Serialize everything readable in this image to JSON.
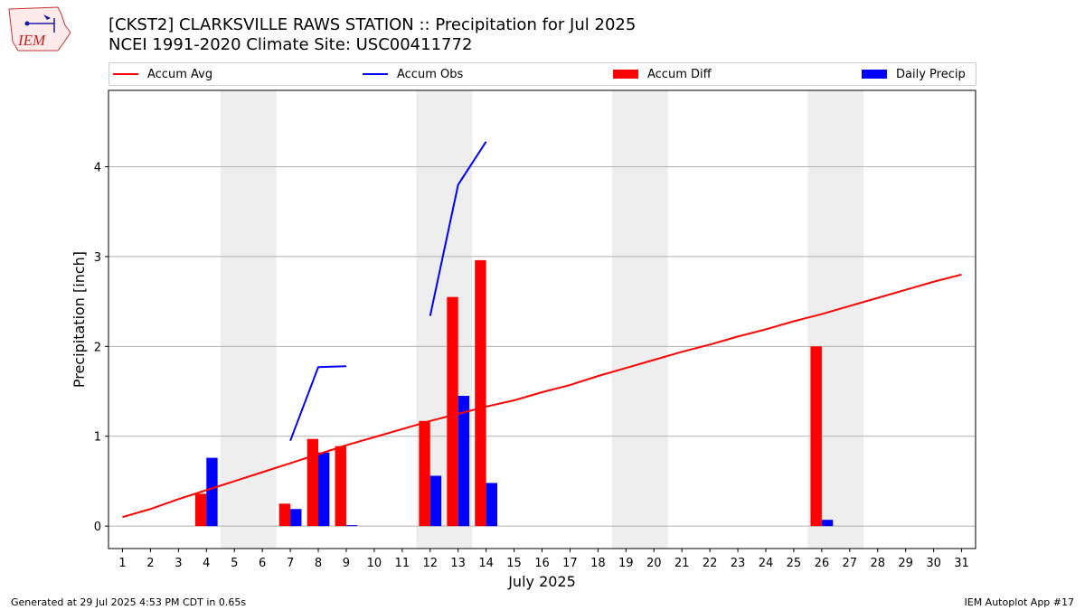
{
  "header": {
    "title_line1": "[CKST2] CLARKSVILLE RAWS STATION :: Precipitation for Jul 2025",
    "title_line2": "NCEI 1991-2020 Climate Site: USC00411772",
    "logo_text": "IEM"
  },
  "legend": {
    "accum_avg": "Accum Avg",
    "accum_obs": "Accum Obs",
    "accum_diff": "Accum Diff",
    "daily_precip": "Daily Precip"
  },
  "footer": {
    "generated": "Generated at 29 Jul 2025 4:53 PM CDT in 0.65s",
    "app": "IEM Autoplot App #17"
  },
  "colors": {
    "avg": "#ff0000",
    "obs": "#0000ff",
    "diff": "#ff0000",
    "daily": "#0000ff",
    "weekend": "#eeeeee",
    "grid": "#b0b0b0"
  },
  "chart_data": {
    "type": "bar",
    "xlabel": "July 2025",
    "ylabel": "Precipitation [inch]",
    "xlim": [
      0.5,
      31.5
    ],
    "ylim": [
      -0.25,
      4.85
    ],
    "yticks": [
      0,
      1,
      2,
      3,
      4
    ],
    "days": [
      1,
      2,
      3,
      4,
      5,
      6,
      7,
      8,
      9,
      10,
      11,
      12,
      13,
      14,
      15,
      16,
      17,
      18,
      19,
      20,
      21,
      22,
      23,
      24,
      25,
      26,
      27,
      28,
      29,
      30,
      31
    ],
    "weekend_bands": [
      [
        4.5,
        6.5
      ],
      [
        11.5,
        13.5
      ],
      [
        18.5,
        20.5
      ],
      [
        25.5,
        27.5
      ]
    ],
    "grid": "y",
    "legend_placement": "top",
    "series": [
      {
        "name": "Accum Avg",
        "type": "line",
        "x": [
          1,
          2,
          3,
          4,
          5,
          6,
          7,
          8,
          9,
          10,
          11,
          12,
          13,
          14,
          15,
          16,
          17,
          18,
          19,
          20,
          21,
          22,
          23,
          24,
          25,
          26,
          27,
          28,
          29,
          30,
          31
        ],
        "values": [
          0.1,
          0.19,
          0.3,
          0.4,
          0.5,
          0.6,
          0.7,
          0.8,
          0.9,
          0.99,
          1.08,
          1.17,
          1.25,
          1.33,
          1.4,
          1.49,
          1.57,
          1.67,
          1.76,
          1.85,
          1.94,
          2.02,
          2.11,
          2.19,
          2.28,
          2.36,
          2.45,
          2.54,
          2.63,
          2.72,
          2.8
        ]
      },
      {
        "name": "Accum Obs",
        "type": "line",
        "segments": [
          {
            "x": [
              7,
              8,
              9
            ],
            "values": [
              0.95,
              1.77,
              1.78
            ]
          },
          {
            "x": [
              12,
              13,
              14
            ],
            "values": [
              2.34,
              3.8,
              4.28
            ]
          }
        ]
      },
      {
        "name": "Accum Diff",
        "type": "bar",
        "x": [
          4,
          7,
          8,
          9,
          12,
          13,
          14,
          26
        ],
        "values": [
          0.36,
          0.25,
          0.97,
          0.89,
          1.17,
          2.55,
          2.96,
          2.0
        ]
      },
      {
        "name": "Daily Precip",
        "type": "bar",
        "x": [
          4,
          7,
          8,
          9,
          12,
          13,
          14,
          26
        ],
        "values": [
          0.76,
          0.19,
          0.82,
          0.01,
          0.56,
          1.45,
          0.48,
          0.07
        ]
      }
    ]
  }
}
